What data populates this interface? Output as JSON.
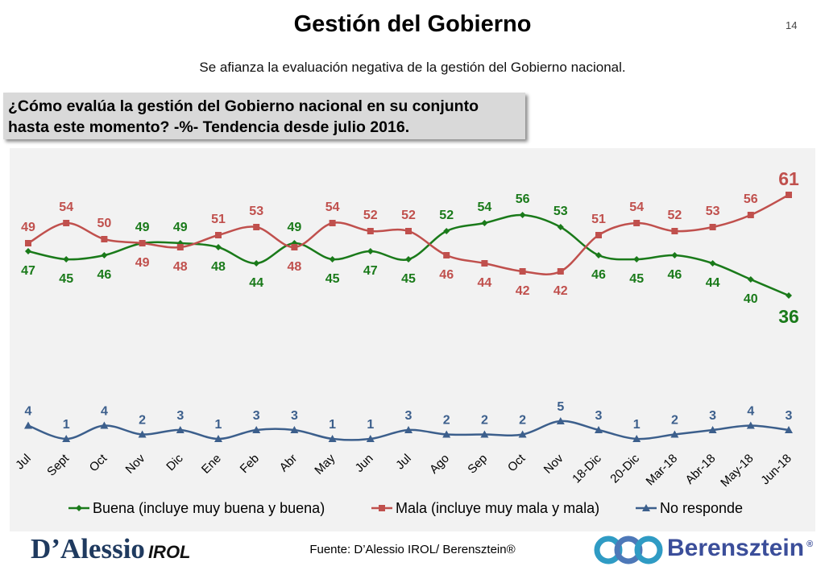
{
  "header": {
    "title": "Gestión del Gobierno",
    "page_number": "14",
    "subtitle": "Se afianza la evaluación negativa de la gestión del Gobierno nacional.",
    "question_line1": "¿Cómo evalúa la gestión del Gobierno nacional en su conjunto",
    "question_line2": "hasta este momento? -%- Tendencia desde julio 2016."
  },
  "colors": {
    "buena": "#1a7a1a",
    "mala": "#c0504d",
    "no_responde": "#3c5f8c"
  },
  "chart_data": {
    "type": "line",
    "categories": [
      "Jul",
      "Sept",
      "Oct",
      "Nov",
      "Dic",
      "Ene",
      "Feb",
      "Abr",
      "May",
      "Jun",
      "Jul",
      "Ago",
      "Sep",
      "Oct",
      "Nov",
      "18-Dic",
      "20-Dic",
      "Mar-18",
      "Abr-18",
      "May-18",
      "Jun-18"
    ],
    "series": [
      {
        "name": "Buena (incluye muy buena y buena)",
        "values": [
          47,
          45,
          46,
          49,
          49,
          48,
          44,
          49,
          45,
          47,
          45,
          52,
          54,
          56,
          53,
          46,
          45,
          46,
          44,
          40,
          36
        ]
      },
      {
        "name": "Mala (incluye muy mala y mala)",
        "values": [
          49,
          54,
          50,
          49,
          48,
          51,
          53,
          48,
          54,
          52,
          52,
          46,
          44,
          42,
          42,
          51,
          54,
          52,
          53,
          56,
          61
        ]
      },
      {
        "name": "No responde",
        "values": [
          4,
          1,
          4,
          2,
          3,
          1,
          3,
          3,
          1,
          1,
          3,
          2,
          2,
          2,
          5,
          3,
          1,
          2,
          3,
          4,
          3
        ]
      }
    ],
    "legend_position": "bottom",
    "grid": false
  },
  "footer": {
    "source": "Fuente: D’Alessio IROL/ Berensztein®",
    "logo_left_main": "D’Alessio",
    "logo_left_sub": "IROL",
    "logo_right": "Berensztein",
    "logo_right_mark": "®"
  }
}
